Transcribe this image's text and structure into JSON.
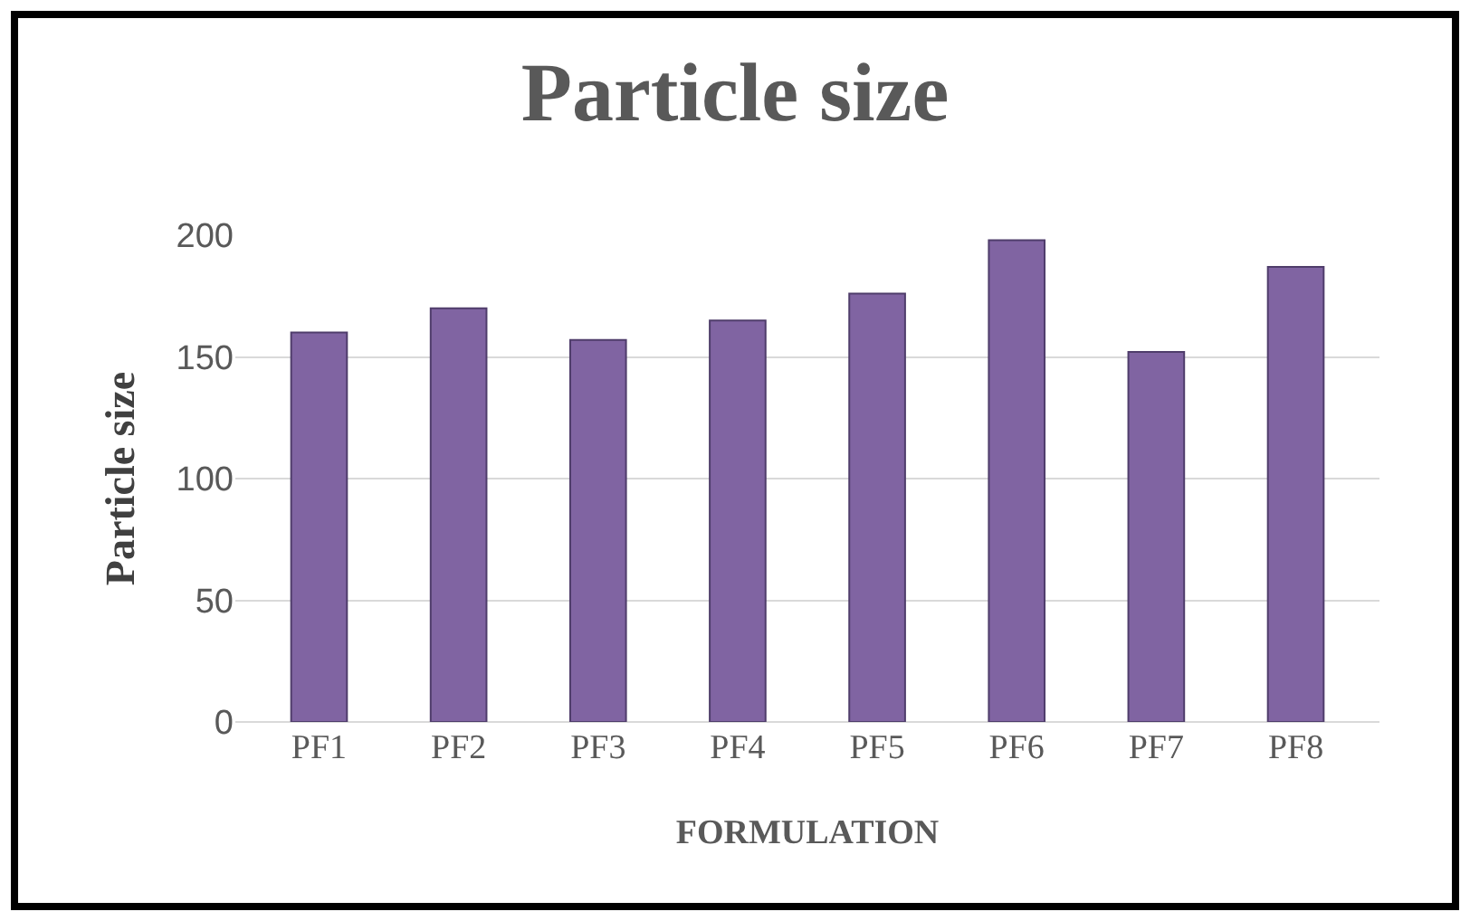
{
  "chart_data": {
    "type": "bar",
    "title": "Particle size",
    "xlabel": "FORMULATION",
    "ylabel": "Particle size",
    "categories": [
      "PF1",
      "PF2",
      "PF3",
      "PF4",
      "PF5",
      "PF6",
      "PF7",
      "PF8"
    ],
    "values": [
      160,
      170,
      157,
      165,
      176,
      198,
      152,
      187
    ],
    "color": "#8064a2",
    "ylim": [
      0,
      200
    ],
    "yticks": [
      0,
      50,
      100,
      150,
      200
    ],
    "grid": "y"
  }
}
